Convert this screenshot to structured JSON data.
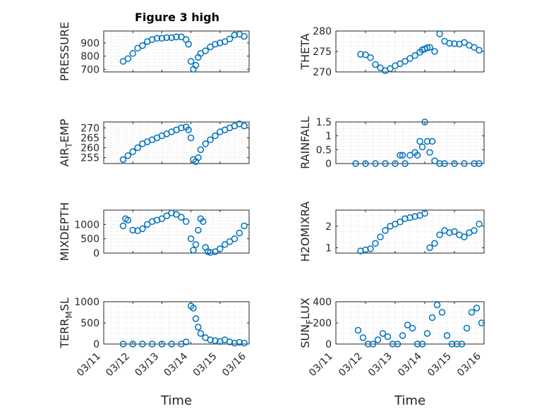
{
  "chart_data": [
    {
      "type": "scatter",
      "title": "Figure 3 high",
      "ylabel": "PRESSURE",
      "ylim": [
        680,
        990
      ],
      "yticks": [
        700,
        800,
        900
      ],
      "ytick_labels": [
        "700",
        "800",
        "900"
      ],
      "xlim": [
        "03/11",
        "03/16"
      ],
      "series": [
        {
          "x": [
            "03/11 16:00",
            "03/11 20:00",
            "03/12 00:00",
            "03/12 04:00",
            "03/12 08:00",
            "03/12 12:00",
            "03/12 16:00",
            "03/12 20:00",
            "03/13 00:00",
            "03/13 04:00",
            "03/13 08:00",
            "03/13 12:00",
            "03/13 16:00",
            "03/13 20:00",
            "03/13 22:00",
            "03/14 00:00",
            "03/14 02:00",
            "03/14 04:00",
            "03/14 06:00",
            "03/14 08:00",
            "03/14 12:00",
            "03/14 16:00",
            "03/14 20:00",
            "03/15 00:00",
            "03/15 04:00",
            "03/15 08:00",
            "03/15 12:00",
            "03/15 16:00",
            "03/15 20:00"
          ],
          "y": [
            760,
            780,
            820,
            860,
            880,
            910,
            925,
            935,
            935,
            940,
            940,
            945,
            945,
            925,
            890,
            760,
            700,
            730,
            790,
            820,
            840,
            870,
            890,
            900,
            910,
            930,
            960,
            965,
            950
          ]
        }
      ]
    },
    {
      "type": "scatter",
      "title": "",
      "ylabel": "THETA",
      "ylim": [
        270,
        280
      ],
      "yticks": [
        270,
        275,
        280
      ],
      "ytick_labels": [
        "270",
        "275",
        "280"
      ],
      "xlim": [
        "03/11",
        "03/16"
      ],
      "series": [
        {
          "x": [
            "03/11 20:00",
            "03/12 00:00",
            "03/12 04:00",
            "03/12 08:00",
            "03/12 12:00",
            "03/12 16:00",
            "03/12 20:00",
            "03/13 00:00",
            "03/13 04:00",
            "03/13 08:00",
            "03/13 12:00",
            "03/13 16:00",
            "03/13 20:00",
            "03/13 22:00",
            "03/14 00:00",
            "03/14 02:00",
            "03/14 04:00",
            "03/14 08:00",
            "03/14 12:00",
            "03/14 16:00",
            "03/14 20:00",
            "03/15 00:00",
            "03/15 04:00",
            "03/15 08:00",
            "03/15 12:00",
            "03/15 16:00",
            "03/15 20:00"
          ],
          "y": [
            274.3,
            274.2,
            273.5,
            271.8,
            271.0,
            270.3,
            270.8,
            271.5,
            272.0,
            272.6,
            273.3,
            274.0,
            274.8,
            275.4,
            275.6,
            275.9,
            276.0,
            275.0,
            279.3,
            277.5,
            277.0,
            276.9,
            276.8,
            277.2,
            276.5,
            276.0,
            275.3
          ]
        }
      ]
    },
    {
      "type": "scatter",
      "title": "",
      "ylabel": "AIR_TEMP",
      "ylim": [
        252,
        273
      ],
      "yticks": [
        255,
        260,
        265,
        270
      ],
      "ytick_labels": [
        "255",
        "260",
        "265",
        "270"
      ],
      "xlim": [
        "03/11",
        "03/16"
      ],
      "series": [
        {
          "x": [
            "03/11 16:00",
            "03/11 20:00",
            "03/12 00:00",
            "03/12 04:00",
            "03/12 08:00",
            "03/12 12:00",
            "03/12 16:00",
            "03/12 20:00",
            "03/13 00:00",
            "03/13 04:00",
            "03/13 08:00",
            "03/13 12:00",
            "03/13 16:00",
            "03/13 20:00",
            "03/13 22:00",
            "03/14 00:00",
            "03/14 02:00",
            "03/14 04:00",
            "03/14 06:00",
            "03/14 08:00",
            "03/14 12:00",
            "03/14 16:00",
            "03/14 20:00",
            "03/15 00:00",
            "03/15 04:00",
            "03/15 08:00",
            "03/15 12:00",
            "03/15 16:00",
            "03/15 20:00"
          ],
          "y": [
            254,
            256,
            258,
            260,
            262,
            263,
            264,
            265,
            266,
            267,
            268,
            269,
            270,
            270.5,
            269,
            265,
            254,
            253,
            255,
            259,
            262,
            264,
            266,
            268,
            269,
            270,
            271,
            272,
            271
          ]
        }
      ]
    },
    {
      "type": "scatter",
      "title": "",
      "ylabel": "RAINFALL",
      "ylim": [
        0,
        1.5
      ],
      "yticks": [
        0,
        0.5,
        1,
        1.5
      ],
      "ytick_labels": [
        "0",
        "0.5",
        "1",
        "1.5"
      ],
      "xlim": [
        "03/11",
        "03/16"
      ],
      "series": [
        {
          "x": [
            "03/11 16:00",
            "03/12 00:00",
            "03/12 08:00",
            "03/12 16:00",
            "03/13 00:00",
            "03/13 04:00",
            "03/13 06:00",
            "03/13 08:00",
            "03/13 12:00",
            "03/13 16:00",
            "03/13 18:00",
            "03/13 20:00",
            "03/13 22:00",
            "03/14 00:00",
            "03/14 02:00",
            "03/14 04:00",
            "03/14 06:00",
            "03/14 08:00",
            "03/14 12:00",
            "03/14 16:00",
            "03/15 00:00",
            "03/15 08:00",
            "03/15 16:00",
            "03/15 20:00"
          ],
          "y": [
            0,
            0,
            0,
            0,
            0,
            0.3,
            0.3,
            0,
            0.3,
            0.4,
            0.3,
            0.8,
            0.6,
            1.5,
            0.8,
            0.4,
            0.8,
            0.1,
            0,
            0,
            0,
            0,
            0,
            0
          ]
        }
      ]
    },
    {
      "type": "scatter",
      "title": "",
      "ylabel": "MIXDEPTH",
      "ylim": [
        0,
        1500
      ],
      "yticks": [
        0,
        500,
        1000
      ],
      "ytick_labels": [
        "0",
        "500",
        "1000"
      ],
      "xlim": [
        "03/11",
        "03/16"
      ],
      "series": [
        {
          "x": [
            "03/11 16:00",
            "03/11 18:00",
            "03/11 20:00",
            "03/12 00:00",
            "03/12 04:00",
            "03/12 08:00",
            "03/12 12:00",
            "03/12 16:00",
            "03/12 20:00",
            "03/13 00:00",
            "03/13 04:00",
            "03/13 08:00",
            "03/13 12:00",
            "03/13 16:00",
            "03/13 20:00",
            "03/14 00:00",
            "03/14 02:00",
            "03/14 04:00",
            "03/14 06:00",
            "03/14 08:00",
            "03/14 10:00",
            "03/14 12:00",
            "03/14 14:00",
            "03/14 16:00",
            "03/14 20:00",
            "03/15 00:00",
            "03/15 04:00",
            "03/15 08:00",
            "03/15 12:00",
            "03/15 16:00",
            "03/15 20:00"
          ],
          "y": [
            950,
            1200,
            1150,
            800,
            780,
            850,
            1000,
            1100,
            1150,
            1200,
            1300,
            1400,
            1350,
            1250,
            1100,
            500,
            100,
            300,
            800,
            1200,
            1100,
            200,
            50,
            20,
            50,
            150,
            300,
            400,
            500,
            700,
            950
          ]
        }
      ]
    },
    {
      "type": "scatter",
      "title": "",
      "ylabel": "H2OMIXRA",
      "ylim": [
        0.75,
        2.75
      ],
      "yticks": [
        1,
        2
      ],
      "ytick_labels": [
        "1",
        "2"
      ],
      "xlim": [
        "03/11",
        "03/16"
      ],
      "series": [
        {
          "x": [
            "03/11 20:00",
            "03/12 00:00",
            "03/12 04:00",
            "03/12 08:00",
            "03/12 12:00",
            "03/12 16:00",
            "03/12 20:00",
            "03/13 00:00",
            "03/13 04:00",
            "03/13 08:00",
            "03/13 12:00",
            "03/13 16:00",
            "03/13 20:00",
            "03/14 00:00",
            "03/14 04:00",
            "03/14 08:00",
            "03/14 12:00",
            "03/14 16:00",
            "03/14 20:00",
            "03/15 00:00",
            "03/15 04:00",
            "03/15 08:00",
            "03/15 12:00",
            "03/15 16:00",
            "03/15 20:00"
          ],
          "y": [
            0.85,
            0.9,
            0.95,
            1.2,
            1.5,
            1.8,
            2.0,
            2.1,
            2.2,
            2.35,
            2.4,
            2.45,
            2.5,
            2.6,
            1.0,
            1.2,
            1.6,
            1.8,
            1.7,
            1.75,
            1.6,
            1.5,
            1.7,
            1.8,
            2.1
          ]
        }
      ]
    },
    {
      "type": "scatter",
      "title": "",
      "ylabel": "TERR_MSL",
      "ylim": [
        0,
        1000
      ],
      "yticks": [
        0,
        500,
        1000
      ],
      "ytick_labels": [
        "0",
        "500",
        "1000"
      ],
      "xlim": [
        "03/11",
        "03/16"
      ],
      "series": [
        {
          "x": [
            "03/11 16:00",
            "03/12 00:00",
            "03/12 08:00",
            "03/12 16:00",
            "03/13 00:00",
            "03/13 08:00",
            "03/13 16:00",
            "03/13 20:00",
            "03/14 00:00",
            "03/14 02:00",
            "03/14 04:00",
            "03/14 06:00",
            "03/14 08:00",
            "03/14 12:00",
            "03/14 16:00",
            "03/14 20:00",
            "03/15 00:00",
            "03/15 04:00",
            "03/15 08:00",
            "03/15 12:00",
            "03/15 16:00",
            "03/15 20:00"
          ],
          "y": [
            0,
            0,
            0,
            0,
            0,
            0,
            0,
            50,
            900,
            850,
            600,
            400,
            250,
            150,
            100,
            80,
            60,
            100,
            50,
            20,
            40,
            20
          ]
        }
      ]
    },
    {
      "type": "scatter",
      "title": "",
      "ylabel": "SUN_FLUX",
      "ylim": [
        0,
        400
      ],
      "yticks": [
        0,
        200,
        400
      ],
      "ytick_labels": [
        "0",
        "200",
        "400"
      ],
      "xlim": [
        "03/11",
        "03/16"
      ],
      "series": [
        {
          "x": [
            "03/11 18:00",
            "03/11 22:00",
            "03/12 02:00",
            "03/12 06:00",
            "03/12 10:00",
            "03/12 14:00",
            "03/12 18:00",
            "03/12 22:00",
            "03/13 02:00",
            "03/13 06:00",
            "03/13 10:00",
            "03/13 14:00",
            "03/13 18:00",
            "03/13 22:00",
            "03/14 02:00",
            "03/14 06:00",
            "03/14 10:00",
            "03/14 14:00",
            "03/14 18:00",
            "03/14 22:00",
            "03/15 02:00",
            "03/15 06:00",
            "03/15 10:00",
            "03/15 14:00",
            "03/15 18:00",
            "03/15 22:00"
          ],
          "y": [
            130,
            60,
            0,
            0,
            40,
            100,
            70,
            0,
            0,
            80,
            180,
            150,
            0,
            0,
            100,
            250,
            370,
            300,
            80,
            0,
            0,
            0,
            150,
            300,
            340,
            200
          ]
        }
      ]
    }
  ],
  "figure_title": "Figure 3 high",
  "xticks": [
    "03/11",
    "03/12",
    "03/13",
    "03/14",
    "03/15",
    "03/16"
  ],
  "xlabel": "Time",
  "ylabels": {
    "p1": {
      "main": "PRESSURE",
      "sub": "",
      "tail": ""
    },
    "p2": {
      "main": "THETA",
      "sub": "",
      "tail": ""
    },
    "p3": {
      "main": "AIR",
      "sub": "T",
      "tail": "EMP"
    },
    "p4": {
      "main": "RAINFALL",
      "sub": "",
      "tail": ""
    },
    "p5": {
      "main": "MIXDEPTH",
      "sub": "",
      "tail": ""
    },
    "p6": {
      "main": "H2OMIXRA",
      "sub": "",
      "tail": ""
    },
    "p7": {
      "main": "TERR",
      "sub": "M",
      "tail": "SL"
    },
    "p8": {
      "main": "SUN",
      "sub": "F",
      "tail": "LUX"
    }
  },
  "colors": {
    "marker": "#0072BD",
    "axis": "#262626",
    "grid": "#dcdcdc"
  },
  "grid": true
}
